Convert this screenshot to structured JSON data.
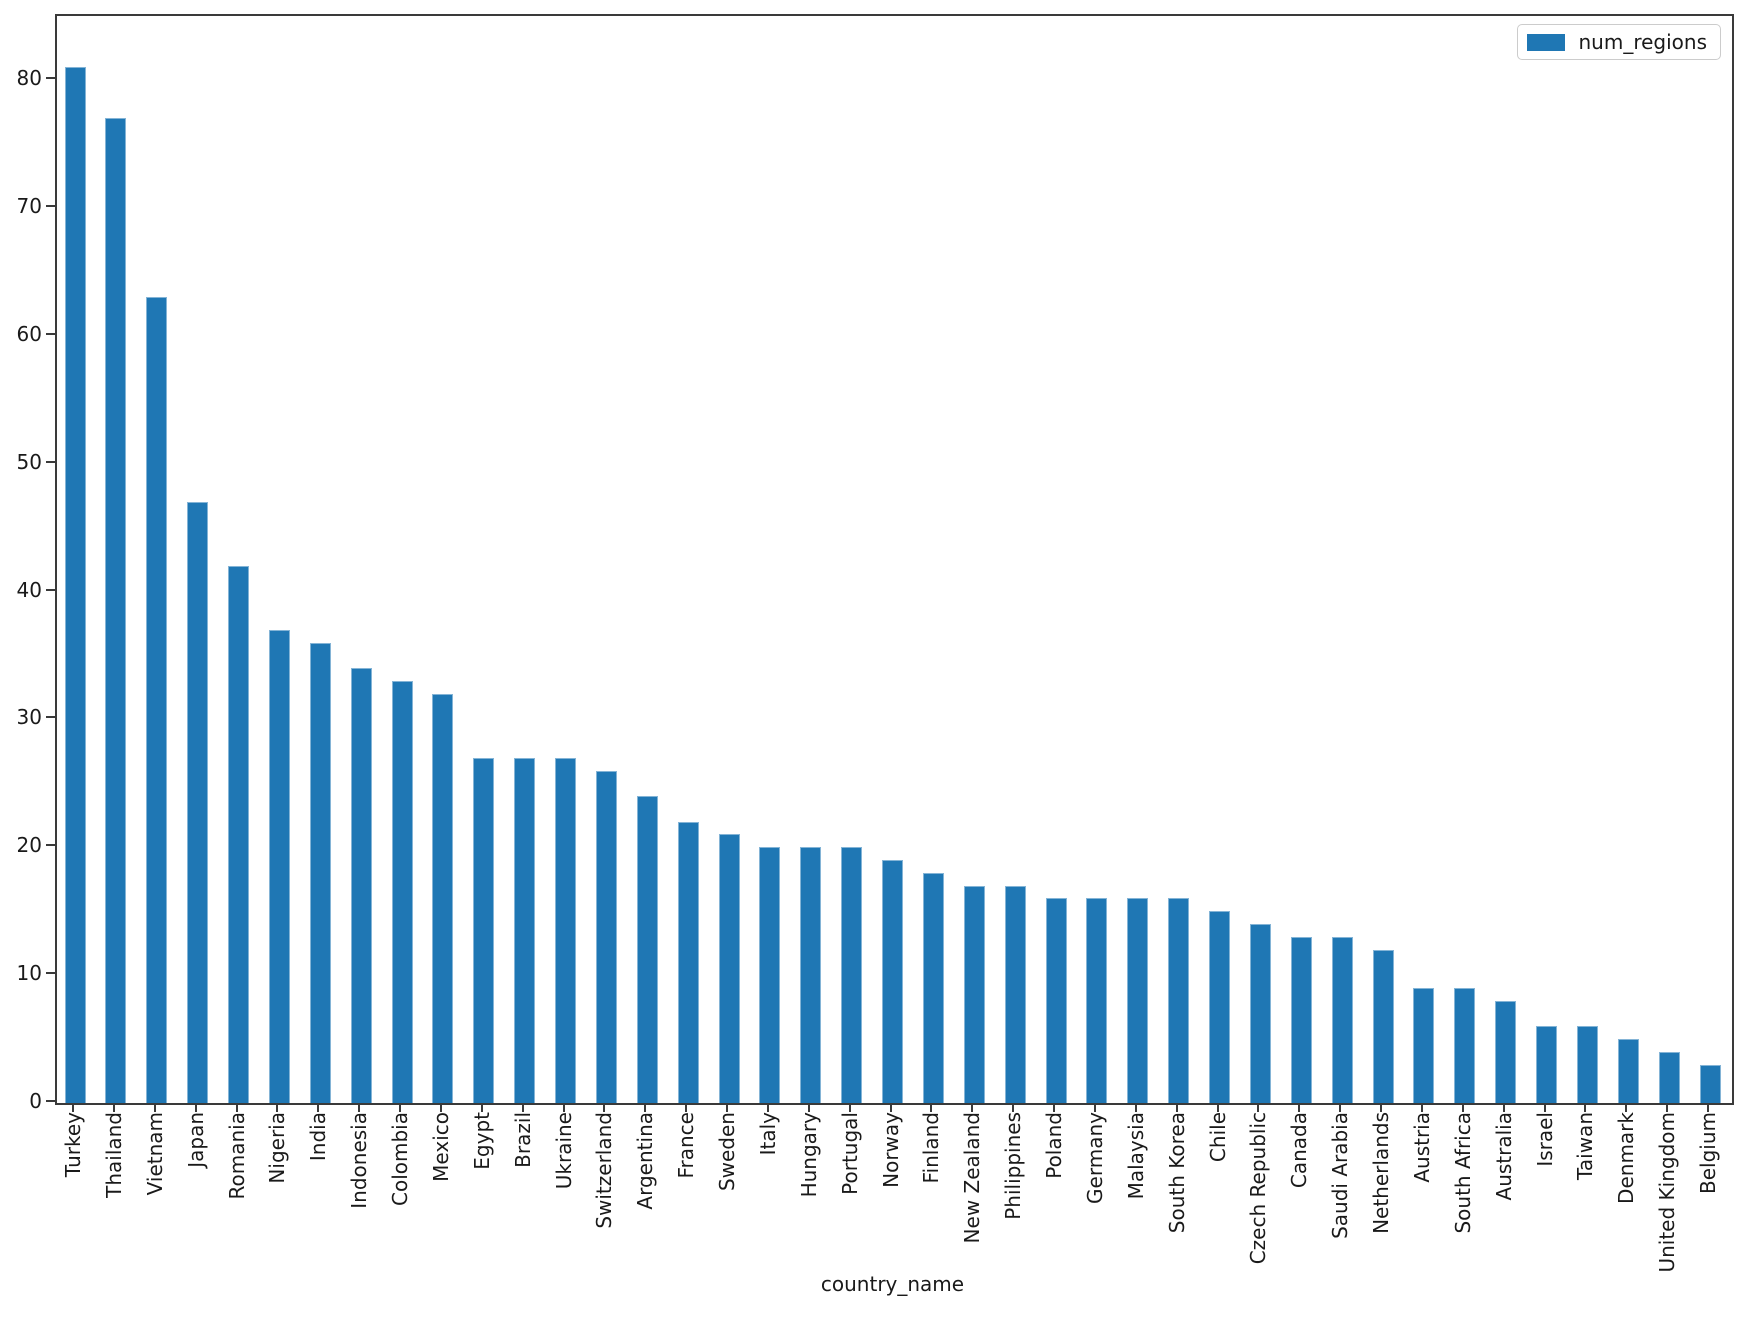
{
  "chart_data": {
    "type": "bar",
    "title": "",
    "xlabel": "country_name",
    "ylabel": "",
    "series_name": "num_regions",
    "legend_position": "upper right",
    "grid": false,
    "ylim": [
      0,
      85
    ],
    "yticks": [
      0,
      10,
      20,
      30,
      40,
      50,
      60,
      70,
      80
    ],
    "x_tick_rotation": 90,
    "categories": [
      "Turkey",
      "Thailand",
      "Vietnam",
      "Japan",
      "Romania",
      "Nigeria",
      "India",
      "Indonesia",
      "Colombia",
      "Mexico",
      "Egypt",
      "Brazil",
      "Ukraine",
      "Switzerland",
      "Argentina",
      "France",
      "Sweden",
      "Italy",
      "Hungary",
      "Portugal",
      "Norway",
      "Finland",
      "New Zealand",
      "Philippines",
      "Poland",
      "Germany",
      "Malaysia",
      "South Korea",
      "Chile",
      "Czech Republic",
      "Canada",
      "Saudi Arabia",
      "Netherlands",
      "Austria",
      "South Africa",
      "Australia",
      "Israel",
      "Taiwan",
      "Denmark",
      "United Kingdom",
      "Belgium"
    ],
    "values": [
      81,
      77,
      63,
      47,
      42,
      37,
      36,
      34,
      33,
      32,
      27,
      27,
      27,
      26,
      24,
      22,
      21,
      20,
      20,
      20,
      19,
      18,
      17,
      17,
      16,
      16,
      16,
      16,
      15,
      14,
      13,
      13,
      12,
      9,
      9,
      8,
      6,
      6,
      5,
      4,
      3
    ],
    "colors": {
      "bar_fill": "#1f77b4",
      "spine": "#3a3a3a",
      "text": "#1a1a1a",
      "legend_border": "#cccccc"
    }
  }
}
